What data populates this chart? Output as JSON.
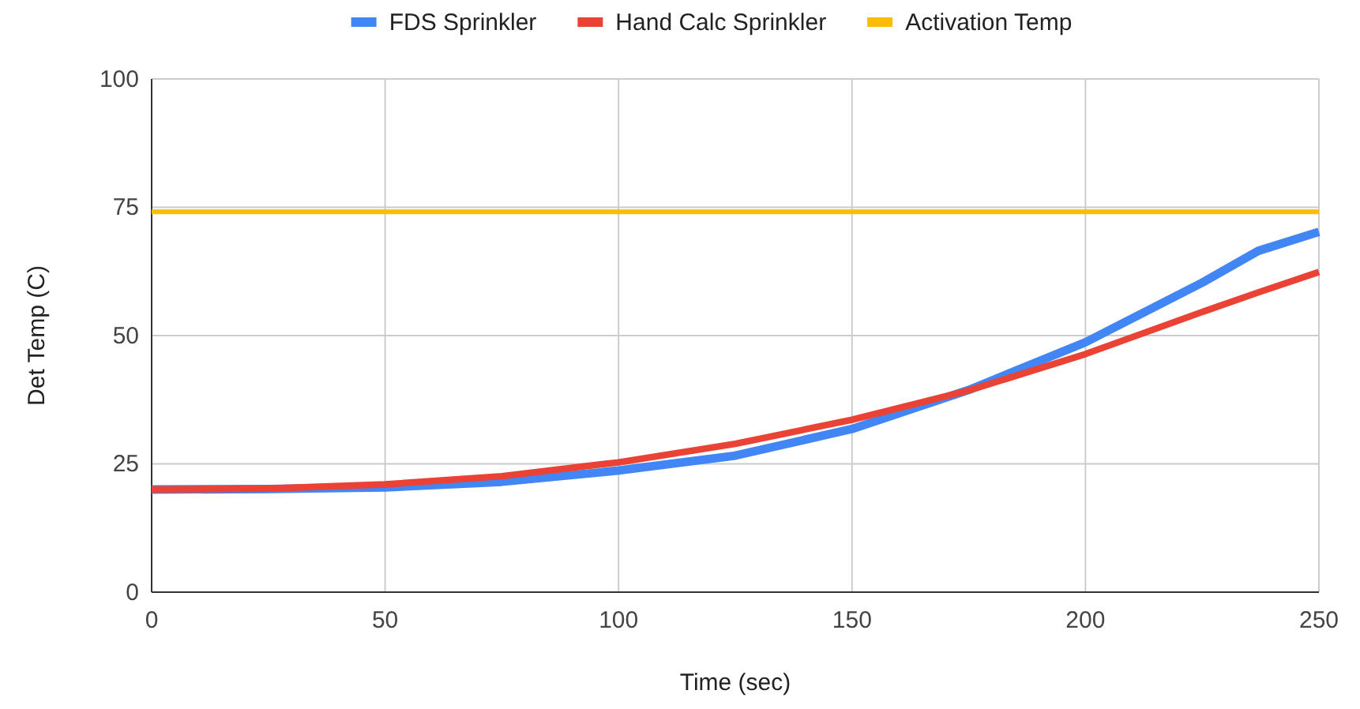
{
  "chart_data": {
    "type": "line",
    "xlabel": "Time (sec)",
    "ylabel": "Det Temp (C)",
    "x": [
      0,
      25,
      50,
      75,
      100,
      125,
      150,
      175,
      200,
      225,
      237,
      250
    ],
    "series": [
      {
        "name": "FDS Sprinkler",
        "color": "#4285f4",
        "values": [
          20,
          20.1,
          20.4,
          21.5,
          23.7,
          26.6,
          31.8,
          39.4,
          48.7,
          60.3,
          66.5,
          70.2
        ]
      },
      {
        "name": "Hand Calc Sprinkler",
        "color": "#ea4335",
        "values": [
          20,
          20.2,
          21,
          22.6,
          25.3,
          28.9,
          33.6,
          39.3,
          46.4,
          54.6,
          58.4,
          62.4
        ]
      },
      {
        "name": "Activation Temp",
        "color": "#fbbc04",
        "values": [
          74.1,
          74.1,
          74.1,
          74.1,
          74.1,
          74.1,
          74.1,
          74.1,
          74.1,
          74.1,
          74.1,
          74.1
        ]
      }
    ],
    "xlim": [
      0,
      250
    ],
    "xticks": [
      0,
      50,
      100,
      150,
      200,
      250
    ],
    "ylim": [
      0,
      100
    ],
    "yticks": [
      0,
      25,
      50,
      75,
      100
    ],
    "grid": true,
    "legend": "top",
    "marker": "none",
    "line_style": "solid"
  }
}
